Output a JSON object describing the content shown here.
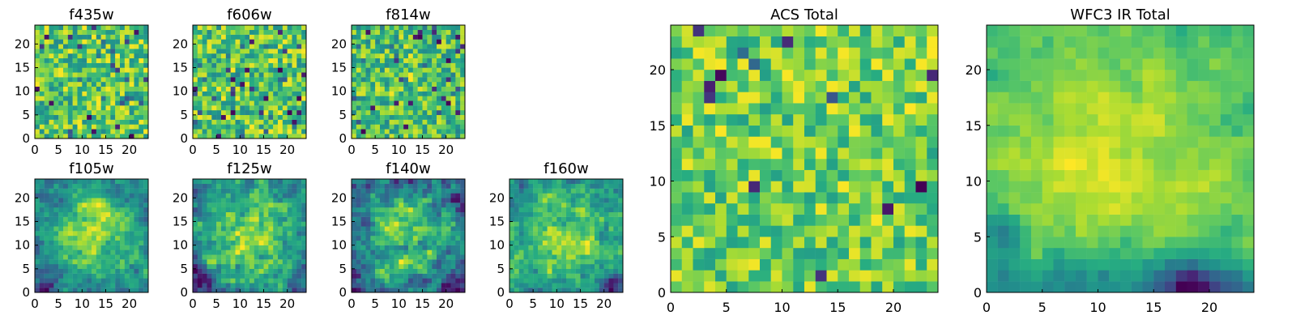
{
  "figure": {
    "title": "",
    "background": "#ffffff"
  },
  "chart_data": [
    {
      "type": "heatmap",
      "title": "f435w",
      "xlabel": "",
      "ylabel": "",
      "shape": [
        24,
        24
      ],
      "xlim": [
        0,
        24
      ],
      "ylim": [
        0,
        24
      ],
      "x_ticks": [
        0,
        5,
        10,
        15,
        20
      ],
      "y_ticks": [
        0,
        5,
        10,
        15,
        20
      ],
      "colormap": "viridis",
      "grid": false,
      "texture": "fine high-contrast noise, scattered dark purple pixels"
    },
    {
      "type": "heatmap",
      "title": "f606w",
      "xlabel": "",
      "ylabel": "",
      "shape": [
        24,
        24
      ],
      "xlim": [
        0,
        24
      ],
      "ylim": [
        0,
        24
      ],
      "x_ticks": [
        0,
        5,
        10,
        15,
        20
      ],
      "y_ticks": [
        0,
        5,
        10,
        15,
        20
      ],
      "colormap": "viridis",
      "grid": false,
      "texture": "fine noise, mostly green-yellow with scattered dark pixels"
    },
    {
      "type": "heatmap",
      "title": "f814w",
      "xlabel": "",
      "ylabel": "",
      "shape": [
        24,
        24
      ],
      "xlim": [
        0,
        24
      ],
      "ylim": [
        0,
        24
      ],
      "x_ticks": [
        0,
        5,
        10,
        15,
        20
      ],
      "y_ticks": [
        0,
        5,
        10,
        15,
        20
      ],
      "colormap": "viridis",
      "grid": false,
      "texture": "fine noise with a slightly brighter center"
    },
    {
      "type": "heatmap",
      "title": "f105w",
      "xlabel": "",
      "ylabel": "",
      "shape": [
        24,
        24
      ],
      "xlim": [
        0,
        24
      ],
      "ylim": [
        0,
        24
      ],
      "x_ticks": [
        0,
        5,
        10,
        15,
        20
      ],
      "y_ticks": [
        0,
        5,
        10,
        15,
        20
      ],
      "colormap": "viridis",
      "grid": false,
      "texture": "smoother clumpy texture, brighter center, darker lower-left"
    },
    {
      "type": "heatmap",
      "title": "f125w",
      "xlabel": "",
      "ylabel": "",
      "shape": [
        24,
        24
      ],
      "xlim": [
        0,
        24
      ],
      "ylim": [
        0,
        24
      ],
      "x_ticks": [
        0,
        5,
        10,
        15,
        20
      ],
      "y_ticks": [
        0,
        5,
        10,
        15,
        20
      ],
      "colormap": "viridis",
      "grid": false,
      "texture": "clumpy texture, bright near center, dark bottom-left"
    },
    {
      "type": "heatmap",
      "title": "f140w",
      "xlabel": "",
      "ylabel": "",
      "shape": [
        24,
        24
      ],
      "xlim": [
        0,
        24
      ],
      "ylim": [
        0,
        24
      ],
      "x_ticks": [
        0,
        5,
        10,
        15,
        20
      ],
      "y_ticks": [
        0,
        5,
        10,
        15,
        20
      ],
      "colormap": "viridis",
      "grid": false,
      "texture": "clumpy texture, bright center, darker lower-right"
    },
    {
      "type": "heatmap",
      "title": "f160w",
      "xlabel": "",
      "ylabel": "",
      "shape": [
        24,
        24
      ],
      "xlim": [
        0,
        24
      ],
      "ylim": [
        0,
        24
      ],
      "x_ticks": [
        0,
        5,
        10,
        15,
        20
      ],
      "y_ticks": [
        0,
        5,
        10,
        15,
        20
      ],
      "colormap": "viridis",
      "grid": false,
      "texture": "clumpy texture, bright upper area, dark lower-right corner"
    },
    {
      "type": "heatmap",
      "title": "ACS Total",
      "xlabel": "",
      "ylabel": "",
      "shape": [
        24,
        24
      ],
      "xlim": [
        0,
        24
      ],
      "ylim": [
        0,
        24
      ],
      "x_ticks": [
        0,
        5,
        10,
        15,
        20
      ],
      "y_ticks": [
        0,
        5,
        10,
        15,
        20
      ],
      "colormap": "viridis",
      "grid": false,
      "texture": "noise with a few isolated dark pixels, generally green-yellow"
    },
    {
      "type": "heatmap",
      "title": "WFC3 IR Total",
      "xlabel": "",
      "ylabel": "",
      "shape": [
        24,
        24
      ],
      "xlim": [
        0,
        24
      ],
      "ylim": [
        0,
        24
      ],
      "x_ticks": [
        0,
        5,
        10,
        15,
        20
      ],
      "y_ticks": [
        0,
        5,
        10,
        15,
        20
      ],
      "colormap": "viridis",
      "grid": false,
      "texture": "smooth field, bright center-left, dark bottom edge and dark spot near x=18,y=0"
    }
  ]
}
